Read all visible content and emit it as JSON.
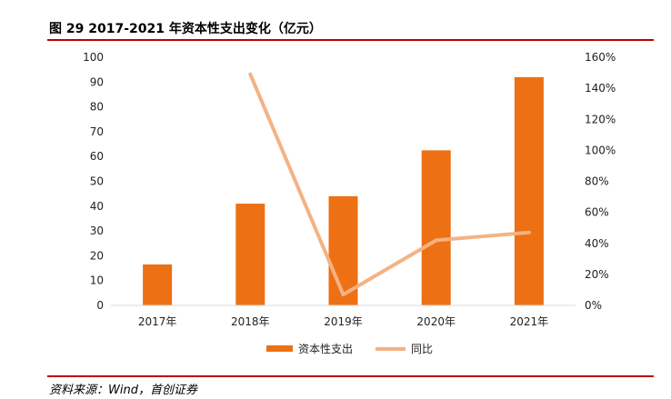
{
  "figure": {
    "title": "图 29 2017-2021 年资本性支出变化（亿元）",
    "source": "资料来源：Wind，首创证券"
  },
  "colors": {
    "bar": "#ed7014",
    "line": "#f5b283",
    "rule": "#c00000",
    "axis": "#d9d9d9"
  },
  "chart_data": {
    "type": "bar",
    "categories": [
      "2017年",
      "2018年",
      "2019年",
      "2020年",
      "2021年"
    ],
    "series": [
      {
        "name": "资本性支出",
        "type": "bar",
        "axis": "left",
        "values": [
          16.5,
          41,
          44,
          62.5,
          92
        ]
      },
      {
        "name": "同比",
        "type": "line",
        "axis": "right",
        "values": [
          null,
          1.49,
          0.07,
          0.42,
          0.47
        ]
      }
    ],
    "y_left": {
      "min": 0,
      "max": 100,
      "step": 10,
      "tick_labels": [
        "0",
        "10",
        "20",
        "30",
        "40",
        "50",
        "60",
        "70",
        "80",
        "90",
        "100"
      ]
    },
    "y_right": {
      "min": 0,
      "max": 1.6,
      "step": 0.2,
      "tick_labels": [
        "0%",
        "20%",
        "40%",
        "60%",
        "80%",
        "100%",
        "120%",
        "140%",
        "160%"
      ]
    },
    "grid": false,
    "legend_position": "bottom"
  }
}
